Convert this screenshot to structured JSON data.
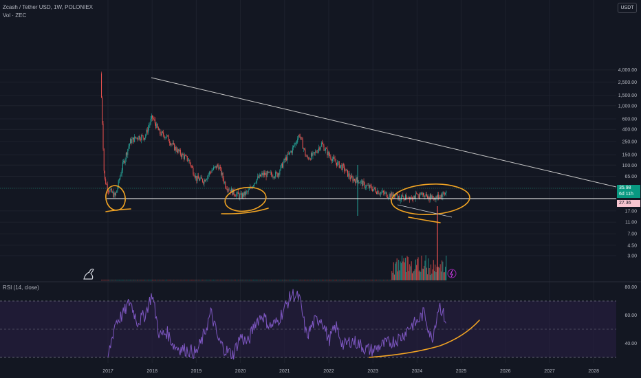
{
  "header": {
    "symbol_line": "Zcash / Tether USD, 1W, POLONIEX",
    "volume_line": "Vol · ZEC",
    "rsi_line": "RSI (14, close)"
  },
  "currency_button": "USDT",
  "price_tags": {
    "current_price": "35.98",
    "countdown": "6d 11h",
    "support_level": "27.36"
  },
  "colors": {
    "background": "#131722",
    "up_candle": "#26a69a",
    "down_candle": "#ef5350",
    "trendline": "#c8c8c8",
    "support_line": "#ffffff",
    "annotation": "#f5a623",
    "rsi_line": "#7e57c2",
    "rsi_band": "#2a1f45",
    "price_tag_green": "#089981",
    "price_tag_pink": "#f7c5d0"
  },
  "icons": [
    "tradingview-logo-icon",
    "lightning-icon"
  ],
  "chart_data": [
    {
      "type": "candlestick",
      "title": "Zcash / Tether USD, 1W, POLONIEX",
      "scale": "log",
      "x_ticks": [
        "2017",
        "2018",
        "2019",
        "2020",
        "2021",
        "2022",
        "2023",
        "2024",
        "2025",
        "2026",
        "2027",
        "2028"
      ],
      "y_ticks": [
        "4,000.00",
        "2,500.00",
        "1,500.00",
        "1,000.00",
        "600.00",
        "400.00",
        "250.00",
        "150.00",
        "100.00",
        "65.00",
        "41.00",
        "17.00",
        "11.00",
        "7.00",
        "4.50",
        "3.00"
      ],
      "y_range": [
        3,
        5000
      ],
      "approx_close_path": [
        [
          "2016-11",
          3500
        ],
        [
          "2016-12",
          60
        ],
        [
          "2017-01",
          40
        ],
        [
          "2017-03",
          30
        ],
        [
          "2017-05",
          100
        ],
        [
          "2017-07",
          250
        ],
        [
          "2017-09",
          300
        ],
        [
          "2017-11",
          300
        ],
        [
          "2018-01",
          650
        ],
        [
          "2018-03",
          350
        ],
        [
          "2018-05",
          300
        ],
        [
          "2018-07",
          200
        ],
        [
          "2018-09",
          150
        ],
        [
          "2018-11",
          120
        ],
        [
          "2019-01",
          60
        ],
        [
          "2019-03",
          55
        ],
        [
          "2019-05",
          80
        ],
        [
          "2019-07",
          100
        ],
        [
          "2019-09",
          45
        ],
        [
          "2019-11",
          35
        ],
        [
          "2020-01",
          30
        ],
        [
          "2020-03",
          35
        ],
        [
          "2020-05",
          55
        ],
        [
          "2020-07",
          70
        ],
        [
          "2020-09",
          70
        ],
        [
          "2020-11",
          70
        ],
        [
          "2021-01",
          120
        ],
        [
          "2021-03",
          180
        ],
        [
          "2021-05",
          330
        ],
        [
          "2021-07",
          130
        ],
        [
          "2021-09",
          150
        ],
        [
          "2021-11",
          230
        ],
        [
          "2022-01",
          150
        ],
        [
          "2022-03",
          110
        ],
        [
          "2022-05",
          90
        ],
        [
          "2022-07",
          60
        ],
        [
          "2022-09",
          55
        ],
        [
          "2022-11",
          45
        ],
        [
          "2023-01",
          40
        ],
        [
          "2023-03",
          35
        ],
        [
          "2023-05",
          32
        ],
        [
          "2023-07",
          30
        ],
        [
          "2023-09",
          28
        ],
        [
          "2023-11",
          30
        ],
        [
          "2024-01",
          30
        ],
        [
          "2024-03",
          33
        ],
        [
          "2024-05",
          28
        ],
        [
          "2024-07",
          30
        ],
        [
          "2024-09",
          36
        ]
      ],
      "annotations": {
        "descending_trendline": [
          [
            "2018-01",
            650
          ],
          [
            "2028-06",
            36
          ]
        ],
        "horizontal_support": 27.36
      }
    },
    {
      "type": "line",
      "title": "RSI (14, close)",
      "y_ticks": [
        "80.00",
        "60.00",
        "40.00"
      ],
      "band": [
        30,
        70
      ],
      "approx_values": [
        [
          "2017-01",
          30
        ],
        [
          "2017-03",
          55
        ],
        [
          "2017-05",
          60
        ],
        [
          "2017-07",
          70
        ],
        [
          "2017-09",
          55
        ],
        [
          "2017-11",
          60
        ],
        [
          "2018-01",
          75
        ],
        [
          "2018-03",
          45
        ],
        [
          "2018-05",
          48
        ],
        [
          "2018-07",
          38
        ],
        [
          "2018-09",
          36
        ],
        [
          "2018-11",
          35
        ],
        [
          "2019-01",
          33
        ],
        [
          "2019-03",
          45
        ],
        [
          "2019-05",
          62
        ],
        [
          "2019-07",
          42
        ],
        [
          "2019-09",
          35
        ],
        [
          "2019-11",
          32
        ],
        [
          "2020-01",
          45
        ],
        [
          "2020-03",
          40
        ],
        [
          "2020-05",
          55
        ],
        [
          "2020-07",
          60
        ],
        [
          "2020-09",
          52
        ],
        [
          "2020-11",
          55
        ],
        [
          "2021-01",
          65
        ],
        [
          "2021-03",
          75
        ],
        [
          "2021-05",
          72
        ],
        [
          "2021-07",
          45
        ],
        [
          "2021-09",
          55
        ],
        [
          "2021-11",
          58
        ],
        [
          "2022-01",
          42
        ],
        [
          "2022-03",
          52
        ],
        [
          "2022-05",
          38
        ],
        [
          "2022-07",
          42
        ],
        [
          "2022-09",
          40
        ],
        [
          "2022-11",
          36
        ],
        [
          "2023-01",
          35
        ],
        [
          "2023-03",
          38
        ],
        [
          "2023-05",
          40
        ],
        [
          "2023-07",
          42
        ],
        [
          "2023-09",
          45
        ],
        [
          "2023-11",
          52
        ],
        [
          "2024-01",
          55
        ],
        [
          "2024-03",
          62
        ],
        [
          "2024-05",
          42
        ],
        [
          "2024-07",
          68
        ],
        [
          "2024-09",
          55
        ]
      ]
    },
    {
      "type": "bar",
      "title": "Vol · ZEC",
      "note": "volume bars visible near the bottom of the price pane, largest during 2023-2024"
    }
  ]
}
